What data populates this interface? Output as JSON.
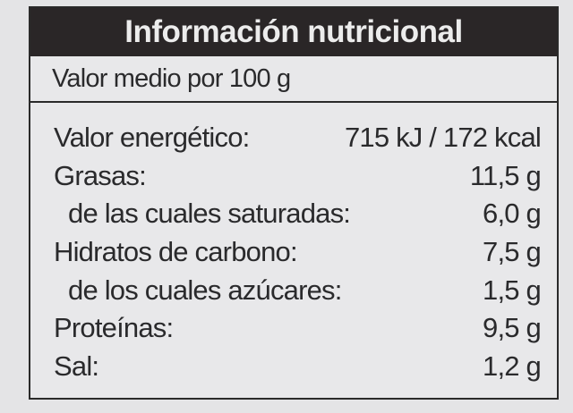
{
  "title": "Información nutricional",
  "subtitle": "Valor medio por 100 g",
  "rows": [
    {
      "label": "Valor energético:",
      "value": "715 kJ / 172 kcal",
      "indent": false
    },
    {
      "label": "Grasas:",
      "value": "11,5 g",
      "indent": false
    },
    {
      "label": "de las cuales saturadas:",
      "value": "6,0 g",
      "indent": true
    },
    {
      "label": "Hidratos de carbono:",
      "value": "7,5 g",
      "indent": false
    },
    {
      "label": "de los cuales azúcares:",
      "value": "1,5 g",
      "indent": true
    },
    {
      "label": "Proteínas:",
      "value": "9,5 g",
      "indent": false
    },
    {
      "label": "Sal:",
      "value": "1,2 g",
      "indent": false
    }
  ]
}
